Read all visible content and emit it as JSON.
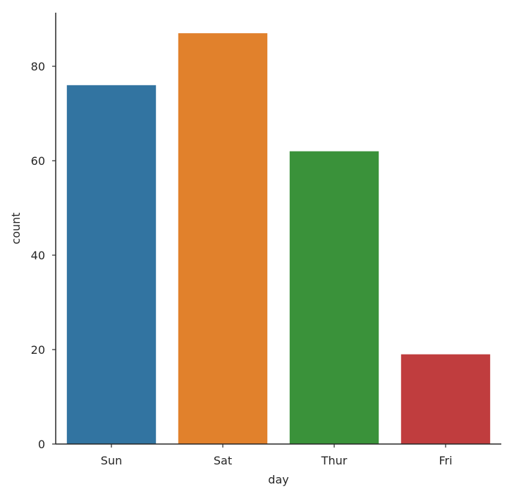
{
  "chart_data": {
    "type": "bar",
    "categories": [
      "Sun",
      "Sat",
      "Thur",
      "Fri"
    ],
    "values": [
      76,
      87,
      62,
      19
    ],
    "colors": [
      "#3274a1",
      "#e1812c",
      "#3a923a",
      "#c03d3e"
    ],
    "xlabel": "day",
    "ylabel": "count",
    "ylim": [
      0,
      91.35
    ],
    "yticks": [
      0,
      20,
      40,
      60,
      80
    ],
    "grid": false,
    "spines": [
      "left",
      "bottom"
    ]
  }
}
